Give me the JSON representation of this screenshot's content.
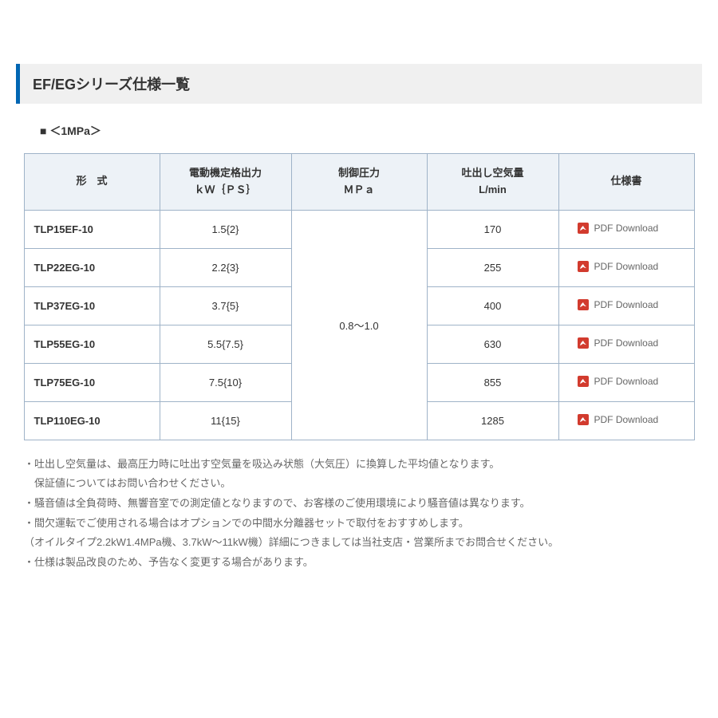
{
  "section_title": "EF/EGシリーズ仕様一覧",
  "subheading": "■ ＜1MPa＞",
  "table": {
    "headers": {
      "model": "形　式",
      "power_line1": "電動機定格出力",
      "power_line2": "ｋＷ｛ＰＳ｝",
      "pressure_line1": "制御圧力",
      "pressure_line2": "ＭＰａ",
      "air_line1": "吐出し空気量",
      "air_line2": "L/min",
      "spec": "仕様書"
    },
    "pressure_merged": "0.8～1.0",
    "pdf_label": "PDF Download",
    "rows": [
      {
        "model": "TLP15EF-10",
        "power": "1.5{2}",
        "air": "170"
      },
      {
        "model": "TLP22EG-10",
        "power": "2.2{3}",
        "air": "255"
      },
      {
        "model": "TLP37EG-10",
        "power": "3.7{5}",
        "air": "400"
      },
      {
        "model": "TLP55EG-10",
        "power": "5.5{7.5}",
        "air": "630"
      },
      {
        "model": "TLP75EG-10",
        "power": "7.5{10}",
        "air": "855"
      },
      {
        "model": "TLP110EG-10",
        "power": "11{15}",
        "air": "1285"
      }
    ]
  },
  "notes": [
    "・吐出し空気量は、最高圧力時に吐出す空気量を吸込み状態（大気圧）に換算した平均値となります。",
    "　保証値についてはお問い合わせください。",
    "・騒音値は全負荷時、無響音室での測定値となりますので、お客様のご使用環境により騒音値は異なります。",
    "・間欠運転でご使用される場合はオプションでの中間水分離器セットで取付をおすすめします。",
    "（オイルタイプ2.2kW1.4MPa機、3.7kW～11kW機）詳細につきましては当社支店・営業所までお問合せください。",
    "・仕様は製品改良のため、予告なく変更する場合があります。"
  ],
  "colors": {
    "accent": "#0066b3",
    "header_bg": "#f0f0f0",
    "th_bg": "#edf2f7",
    "border": "#9fb3c8",
    "text": "#333333",
    "muted": "#666666",
    "pdf_icon": "#d23b2e"
  }
}
